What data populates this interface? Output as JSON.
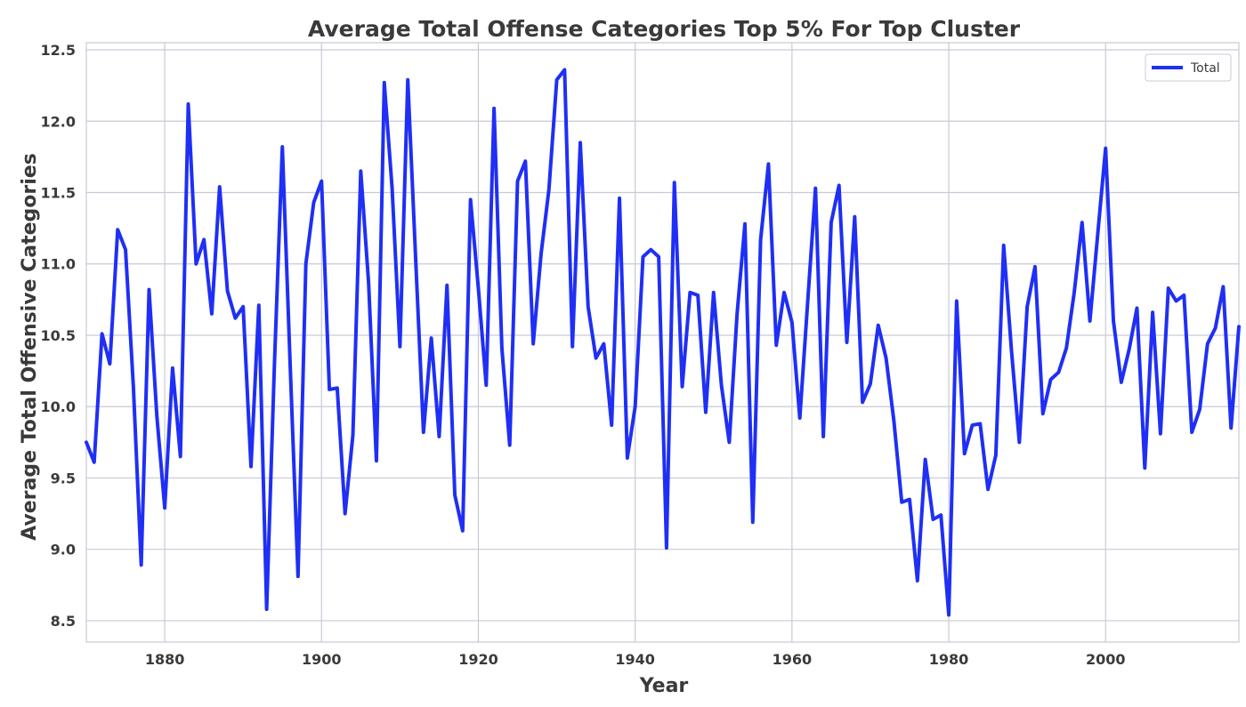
{
  "chart_data": {
    "type": "line",
    "title": "Average Total Offense Categories Top 5% For Top Cluster",
    "xlabel": "Year",
    "ylabel": "Average Total Offensive Categories",
    "xlim": [
      1870,
      2017
    ],
    "ylim": [
      8.35,
      12.55
    ],
    "x_ticks": [
      1880,
      1900,
      1920,
      1940,
      1960,
      1980,
      2000
    ],
    "x_tick_labels": [
      "1880",
      "1900",
      "1920",
      "1940",
      "1960",
      "1980",
      "2000"
    ],
    "y_ticks": [
      8.5,
      9.0,
      9.5,
      10.0,
      10.5,
      11.0,
      11.5,
      12.0,
      12.5
    ],
    "y_tick_labels": [
      "8.5",
      "9.0",
      "9.5",
      "10.0",
      "10.5",
      "11.0",
      "11.5",
      "12.0",
      "12.5"
    ],
    "grid": true,
    "legend_position": "top-right",
    "series": [
      {
        "name": "Total",
        "color": "#1f2ff5",
        "x": [
          1870,
          1871,
          1872,
          1873,
          1874,
          1875,
          1876,
          1877,
          1878,
          1879,
          1880,
          1881,
          1882,
          1883,
          1884,
          1885,
          1886,
          1887,
          1888,
          1889,
          1890,
          1891,
          1892,
          1893,
          1894,
          1895,
          1896,
          1897,
          1898,
          1899,
          1900,
          1901,
          1902,
          1903,
          1904,
          1905,
          1906,
          1907,
          1908,
          1909,
          1910,
          1911,
          1912,
          1913,
          1914,
          1915,
          1916,
          1917,
          1918,
          1919,
          1920,
          1921,
          1922,
          1923,
          1924,
          1925,
          1926,
          1927,
          1928,
          1929,
          1930,
          1931,
          1932,
          1933,
          1934,
          1935,
          1936,
          1937,
          1938,
          1939,
          1940,
          1941,
          1942,
          1943,
          1944,
          1945,
          1946,
          1947,
          1948,
          1949,
          1950,
          1951,
          1952,
          1953,
          1954,
          1955,
          1956,
          1957,
          1958,
          1959,
          1960,
          1961,
          1962,
          1963,
          1964,
          1965,
          1966,
          1967,
          1968,
          1969,
          1970,
          1971,
          1972,
          1973,
          1974,
          1975,
          1976,
          1977,
          1978,
          1979,
          1980,
          1981,
          1982,
          1983,
          1984,
          1985,
          1986,
          1987,
          1988,
          1989,
          1990,
          1991,
          1992,
          1993,
          1994,
          1995,
          1996,
          1997,
          1998,
          1999,
          2000,
          2001,
          2002,
          2003,
          2004,
          2005,
          2006,
          2007,
          2008,
          2009,
          2010,
          2011,
          2012,
          2013,
          2014,
          2015,
          2016,
          2017
        ],
        "values": [
          9.75,
          9.61,
          10.51,
          10.3,
          11.24,
          11.1,
          10.14,
          8.89,
          10.82,
          9.93,
          9.29,
          10.27,
          9.65,
          12.12,
          11.0,
          11.17,
          10.65,
          11.54,
          10.81,
          10.62,
          10.7,
          9.58,
          10.71,
          8.58,
          10.31,
          11.82,
          10.29,
          8.81,
          11.0,
          11.43,
          11.58,
          10.12,
          10.13,
          9.25,
          9.8,
          11.65,
          10.87,
          9.62,
          12.27,
          11.53,
          10.42,
          12.29,
          11.04,
          9.82,
          10.48,
          9.79,
          10.85,
          9.38,
          9.13,
          11.45,
          10.83,
          10.15,
          12.09,
          10.41,
          9.73,
          11.58,
          11.72,
          10.44,
          11.07,
          11.52,
          12.29,
          12.36,
          10.42,
          11.85,
          10.7,
          10.34,
          10.44,
          9.87,
          11.46,
          9.64,
          10.0,
          11.05,
          11.1,
          11.05,
          9.01,
          11.57,
          10.14,
          10.8,
          10.78,
          9.96,
          10.8,
          10.15,
          9.75,
          10.65,
          11.28,
          9.19,
          11.17,
          11.7,
          10.43,
          10.8,
          10.59,
          9.92,
          10.73,
          11.53,
          9.79,
          11.29,
          11.55,
          10.45,
          11.33,
          10.03,
          10.16,
          10.57,
          10.34,
          9.9,
          9.33,
          9.35,
          8.78,
          9.63,
          9.21,
          9.24,
          8.54,
          10.74,
          9.67,
          9.87,
          9.88,
          9.42,
          9.66,
          11.13,
          10.39,
          9.75,
          10.7,
          10.98,
          9.95,
          10.19,
          10.24,
          10.41,
          10.8,
          11.29,
          10.6,
          11.21,
          11.81,
          10.6,
          10.17,
          10.4,
          10.69,
          9.57,
          10.66,
          9.81,
          10.83,
          10.74,
          10.78,
          9.82,
          9.98,
          10.44,
          10.55,
          10.84,
          9.85,
          10.56
        ]
      }
    ]
  }
}
